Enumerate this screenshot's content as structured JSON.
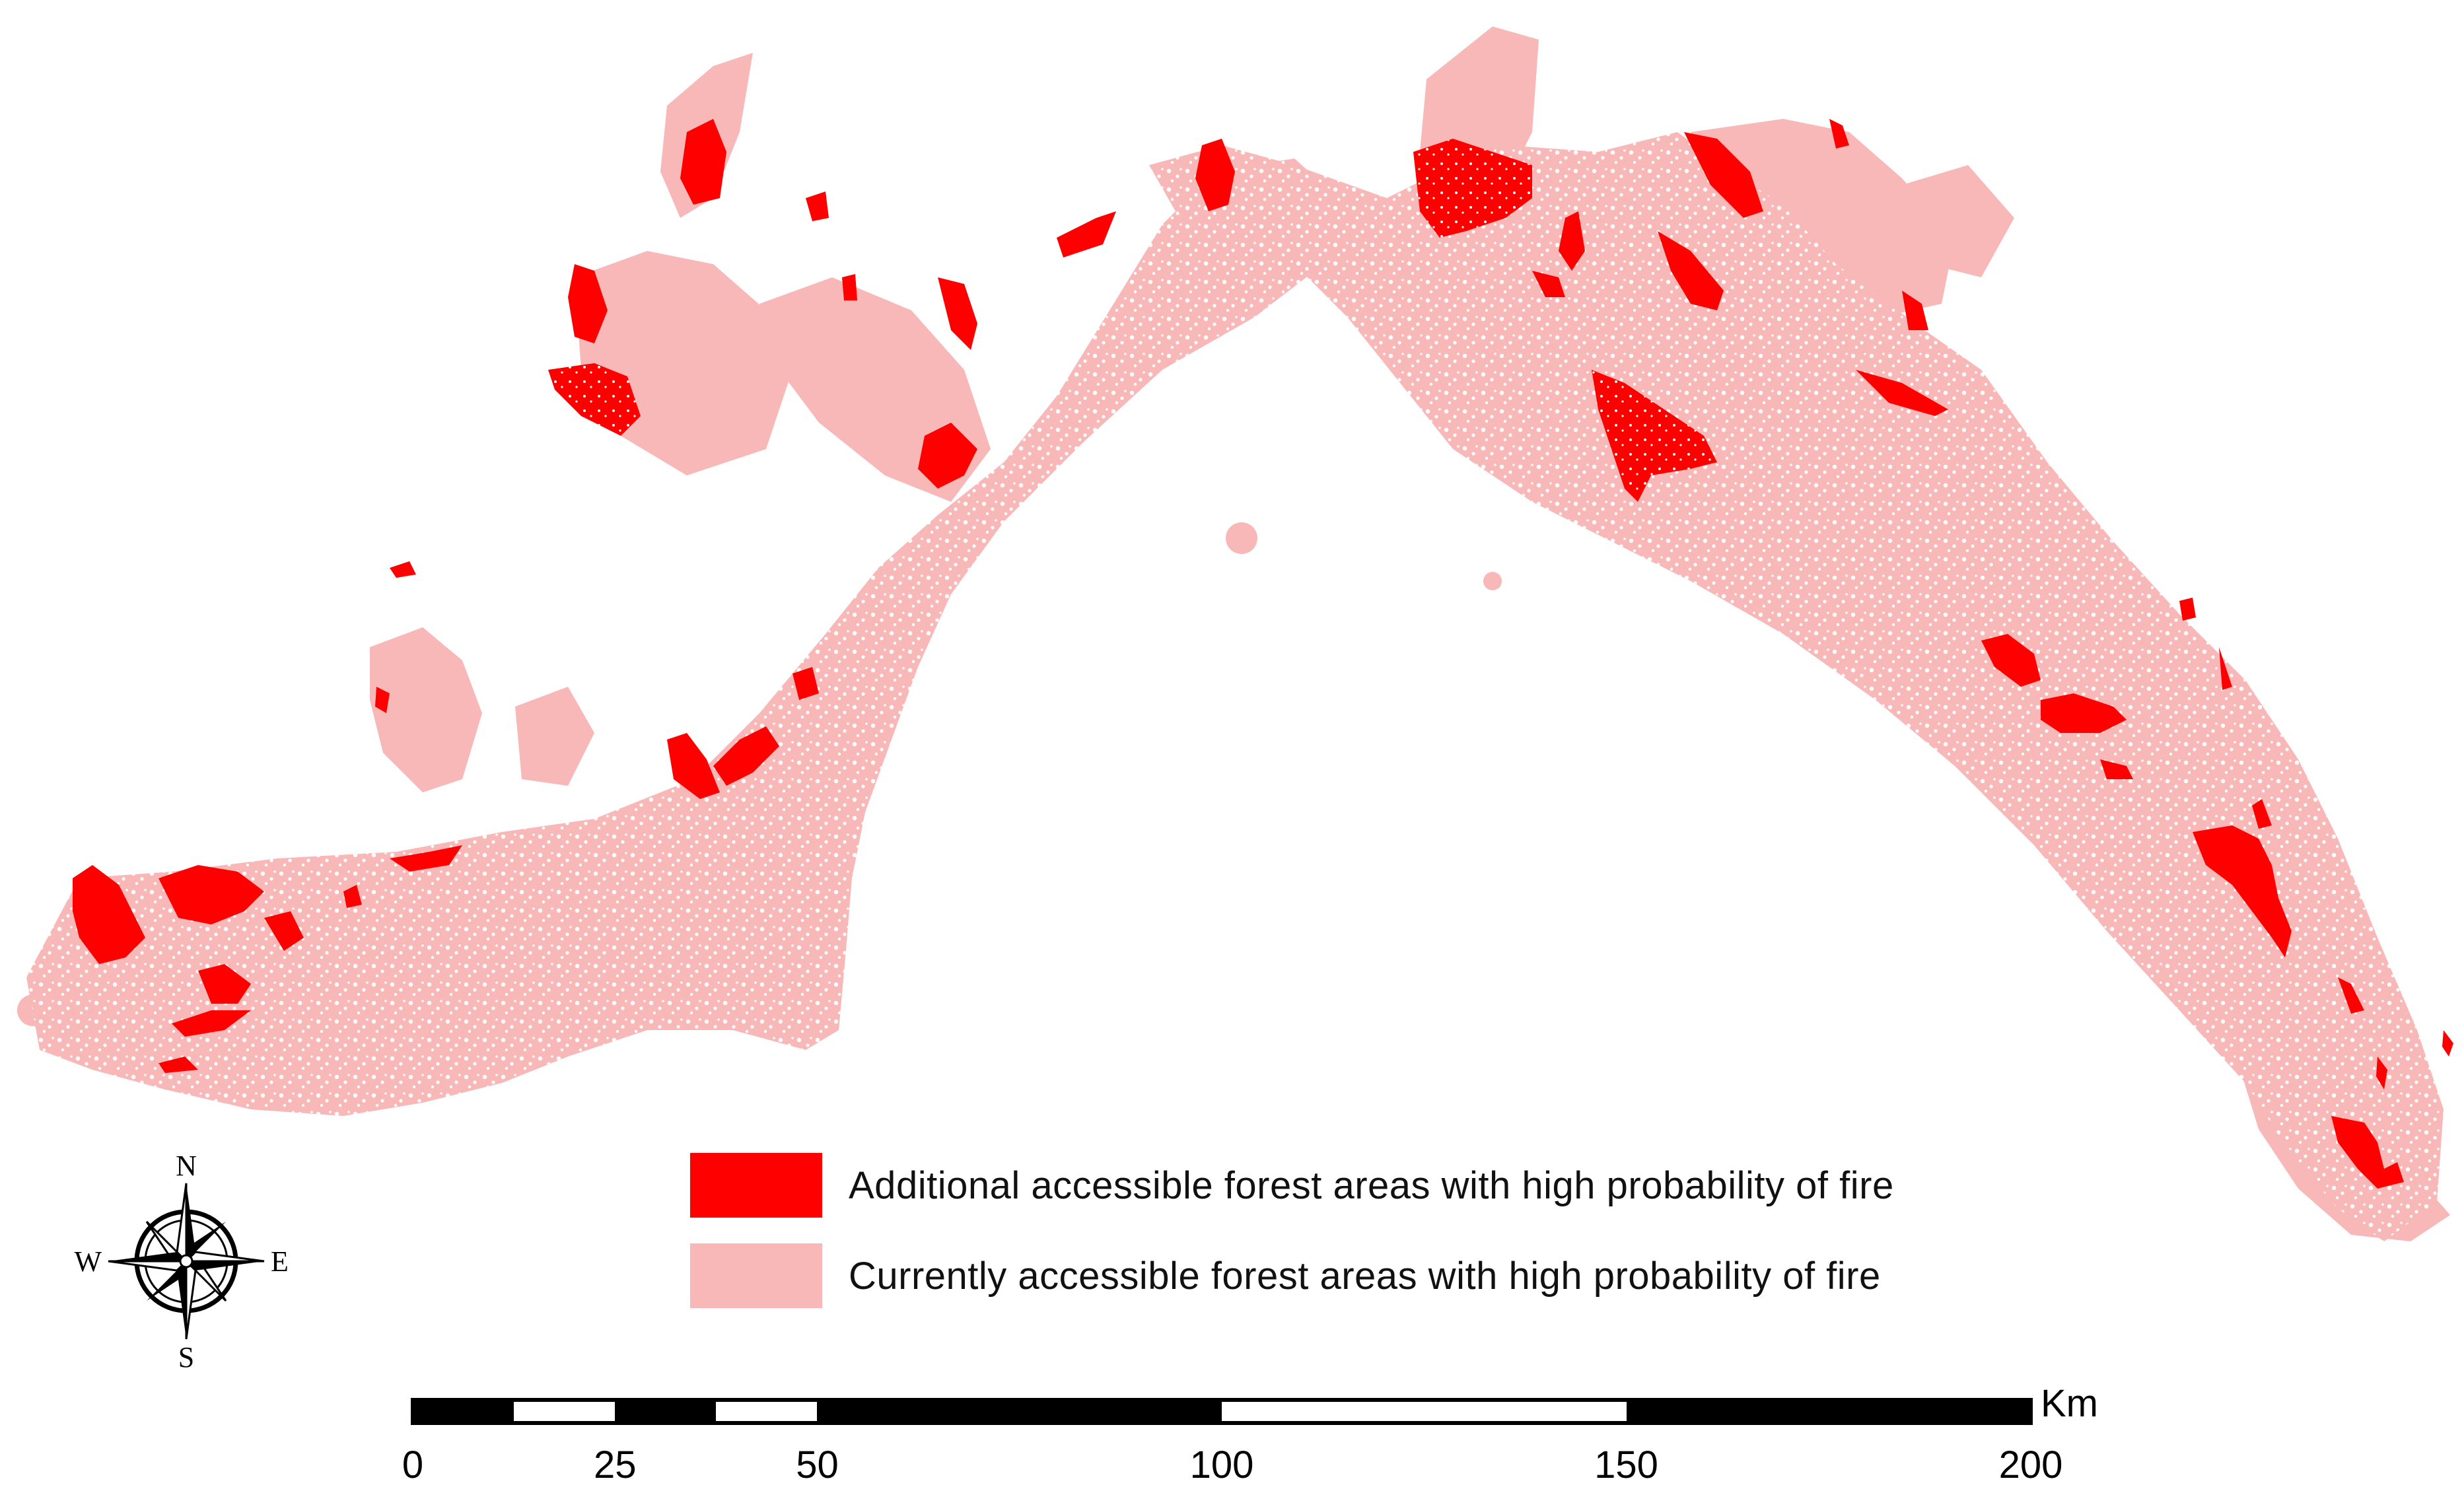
{
  "map": {
    "colors": {
      "additional": "#ff0000",
      "current": "#f9b8b8",
      "background": "#ffffff"
    }
  },
  "legend": {
    "items": [
      {
        "label": "Additional accessible forest areas with high probability of fire",
        "color": "#ff0000"
      },
      {
        "label": "Currently accessible forest areas with high probability of fire",
        "color": "#f9b8b8"
      }
    ]
  },
  "compass": {
    "n": "N",
    "s": "S",
    "e": "E",
    "w": "W"
  },
  "scale_bar": {
    "unit": "Km",
    "ticks": [
      "0",
      "25",
      "50",
      "100",
      "150",
      "200"
    ],
    "tick_values_km": [
      0,
      25,
      50,
      100,
      150,
      200
    ],
    "max_km": 200
  }
}
